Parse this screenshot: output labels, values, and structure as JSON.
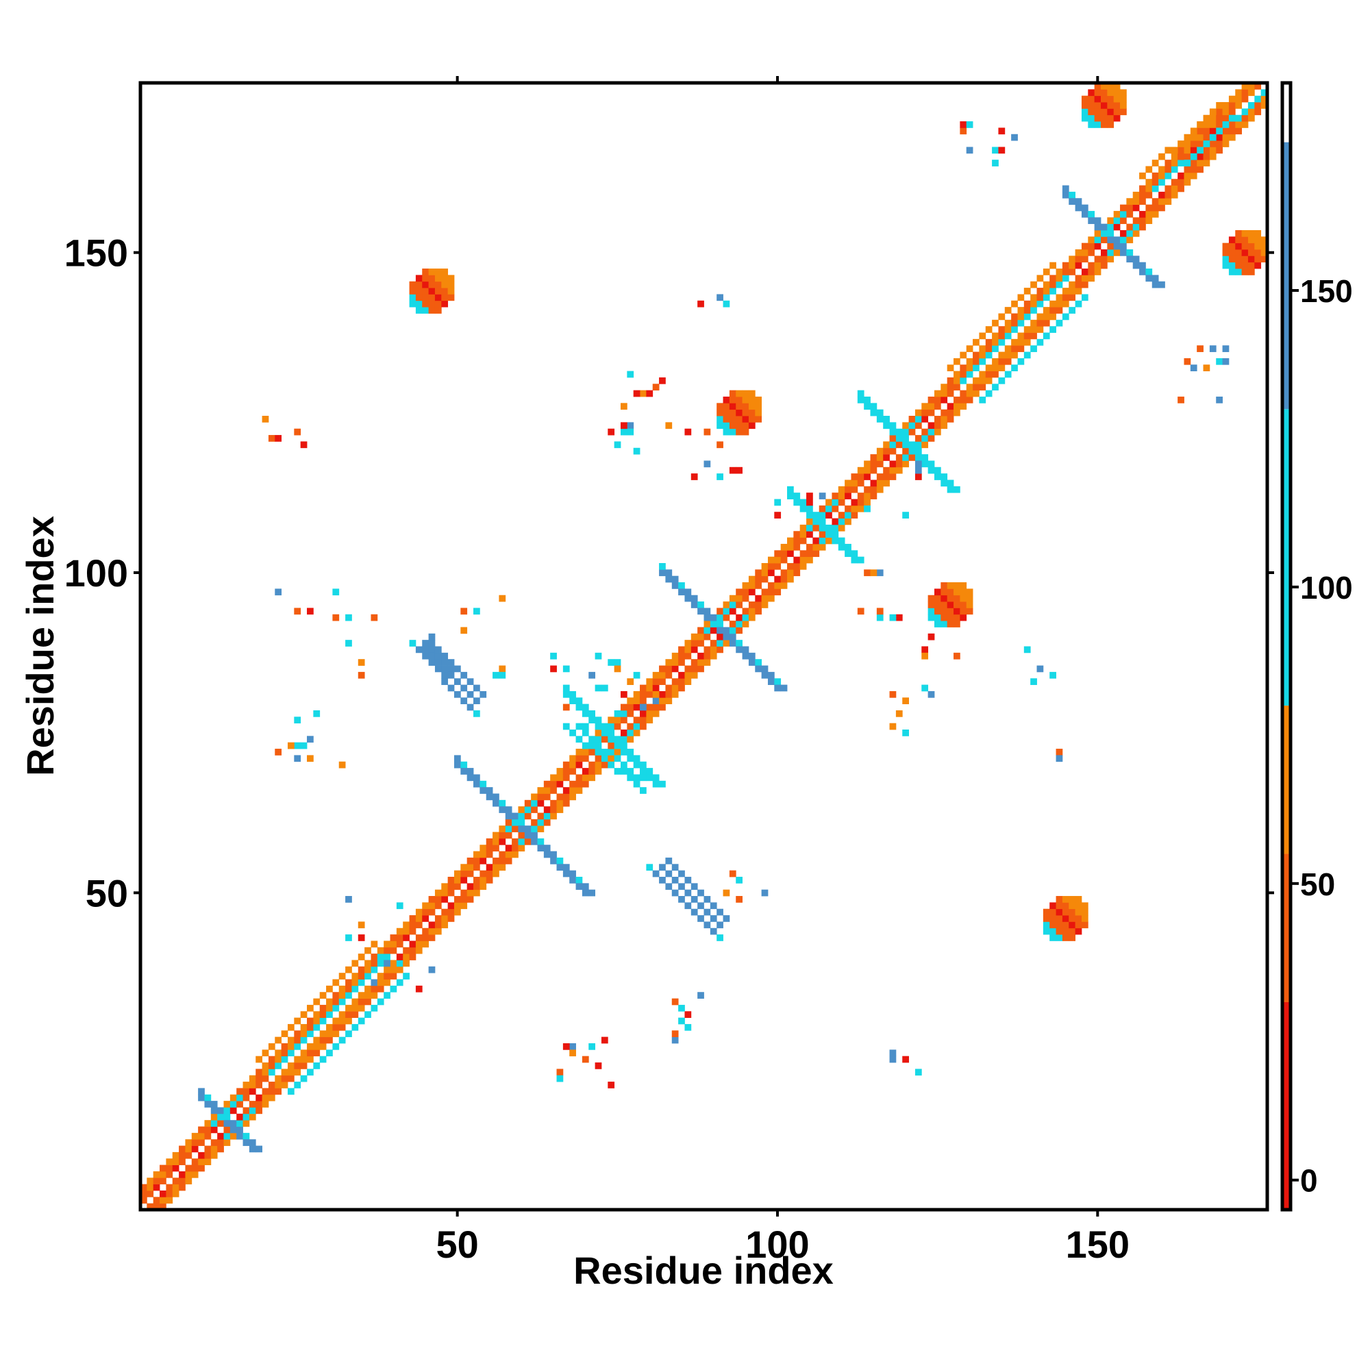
{
  "chart_data": {
    "type": "heatmap",
    "title": "",
    "xlabel": "Residue index",
    "ylabel": "Residue index",
    "xlim": [
      1,
      176
    ],
    "ylim": [
      1,
      176
    ],
    "x_ticks": [
      50,
      100,
      150
    ],
    "y_ticks": [
      50,
      100,
      150
    ],
    "colorbar": {
      "range": [
        -5,
        185
      ],
      "ticks": [
        0,
        50,
        100,
        150
      ],
      "bands": [
        {
          "from": -5,
          "to": 30,
          "color": "#e8160d"
        },
        {
          "from": 30,
          "to": 55,
          "color": "#f25c0f"
        },
        {
          "from": 55,
          "to": 80,
          "color": "#f5880a"
        },
        {
          "from": 80,
          "to": 130,
          "color": "#17d8e6"
        },
        {
          "from": 130,
          "to": 175,
          "color": "#4b8fc8"
        },
        {
          "from": 175,
          "to": 185,
          "color": "#ffffff"
        }
      ]
    },
    "palette": {
      "red": "#e8160d",
      "orange_red": "#f25c0f",
      "orange": "#f5880a",
      "cyan": "#17d8e6",
      "blue": "#4b8fc8"
    },
    "regions": [
      {
        "kind": "diagonal",
        "from": 1,
        "to": 176
      },
      {
        "kind": "cross",
        "x": 14,
        "y": 14,
        "len": 4,
        "color": "blue"
      },
      {
        "kind": "band",
        "x0": 20,
        "y0": 23,
        "x1": 38,
        "y1": 41,
        "width": 3
      },
      {
        "kind": "band",
        "x0": 23,
        "y0": 20,
        "x1": 41,
        "y1": 38,
        "width": 3
      },
      {
        "kind": "cross",
        "x": 60,
        "y": 60,
        "len": 10,
        "color": "blue"
      },
      {
        "kind": "cross",
        "x": 74,
        "y": 74,
        "len": 7,
        "color": "cyan"
      },
      {
        "kind": "cross",
        "x": 91,
        "y": 91,
        "len": 9,
        "color": "blue"
      },
      {
        "kind": "cross",
        "x": 107,
        "y": 107,
        "len": 5,
        "color": "cyan"
      },
      {
        "kind": "cross",
        "x": 120,
        "y": 120,
        "len": 7,
        "color": "cyan"
      },
      {
        "kind": "band",
        "x0": 128,
        "y0": 131,
        "x1": 144,
        "y1": 147,
        "width": 3
      },
      {
        "kind": "band",
        "x0": 131,
        "y0": 128,
        "x1": 147,
        "y1": 144,
        "width": 3
      },
      {
        "kind": "cross",
        "x": 152,
        "y": 152,
        "len": 7,
        "color": "blue"
      },
      {
        "kind": "band",
        "x0": 158,
        "y0": 161,
        "x1": 175,
        "y1": 176,
        "width": 3
      },
      {
        "kind": "segment",
        "x0": 44,
        "y0": 88,
        "x1": 52,
        "y1": 79,
        "color": "blue",
        "width": 4
      },
      {
        "kind": "segment",
        "x0": 81,
        "y0": 53,
        "x1": 90,
        "y1": 44,
        "color": "blue",
        "width": 4
      },
      {
        "kind": "segment",
        "x0": 68,
        "y0": 75,
        "x1": 78,
        "y1": 67,
        "color": "cyan",
        "width": 2
      },
      {
        "kind": "blob",
        "x": 46,
        "y": 144,
        "rx": 3,
        "ry": 3
      },
      {
        "kind": "blob",
        "x": 94,
        "y": 125,
        "rx": 3,
        "ry": 3
      },
      {
        "kind": "blob",
        "x": 127,
        "y": 95,
        "rx": 3,
        "ry": 3
      },
      {
        "kind": "blob",
        "x": 145,
        "y": 46,
        "rx": 3,
        "ry": 3
      },
      {
        "kind": "blob",
        "x": 151,
        "y": 173,
        "rx": 3,
        "ry": 3
      },
      {
        "kind": "blob",
        "x": 173,
        "y": 150,
        "rx": 3,
        "ry": 3
      },
      {
        "kind": "scatter",
        "cx": 30,
        "cy": 90,
        "r": 8,
        "n": 10
      },
      {
        "kind": "scatter",
        "cx": 27,
        "cy": 75,
        "r": 6,
        "n": 10
      },
      {
        "kind": "scatter",
        "cx": 22,
        "cy": 121,
        "r": 4,
        "n": 5
      },
      {
        "kind": "scatter",
        "cx": 37,
        "cy": 44,
        "r": 5,
        "n": 8
      },
      {
        "kind": "scatter",
        "cx": 42,
        "cy": 35,
        "r": 5,
        "n": 6
      },
      {
        "kind": "scatter",
        "cx": 70,
        "cy": 82,
        "r": 6,
        "n": 12
      },
      {
        "kind": "scatter",
        "cx": 76,
        "cy": 80,
        "r": 6,
        "n": 10
      },
      {
        "kind": "scatter",
        "cx": 70,
        "cy": 24,
        "r": 4,
        "n": 10
      },
      {
        "kind": "scatter",
        "cx": 87,
        "cy": 30,
        "r": 4,
        "n": 10
      },
      {
        "kind": "scatter",
        "cx": 78,
        "cy": 127,
        "r": 5,
        "n": 10
      },
      {
        "kind": "scatter",
        "cx": 75,
        "cy": 120,
        "r": 3,
        "n": 5
      },
      {
        "kind": "scatter",
        "cx": 90,
        "cy": 118,
        "r": 5,
        "n": 8
      },
      {
        "kind": "scatter",
        "cx": 89,
        "cy": 145,
        "r": 3,
        "n": 4
      },
      {
        "kind": "scatter",
        "cx": 103,
        "cy": 110,
        "r": 4,
        "n": 6
      },
      {
        "kind": "scatter",
        "cx": 115,
        "cy": 97,
        "r": 5,
        "n": 8
      },
      {
        "kind": "scatter",
        "cx": 118,
        "cy": 112,
        "r": 5,
        "n": 6
      },
      {
        "kind": "scatter",
        "cx": 123,
        "cy": 85,
        "r": 5,
        "n": 8
      },
      {
        "kind": "scatter",
        "cx": 118,
        "cy": 77,
        "r": 3,
        "n": 3
      },
      {
        "kind": "scatter",
        "cx": 142,
        "cy": 86,
        "r": 3,
        "n": 4
      },
      {
        "kind": "scatter",
        "cx": 121,
        "cy": 22,
        "r": 3,
        "n": 4
      },
      {
        "kind": "scatter",
        "cx": 132,
        "cy": 166,
        "r": 5,
        "n": 10
      },
      {
        "kind": "scatter",
        "cx": 166,
        "cy": 132,
        "r": 5,
        "n": 10
      },
      {
        "kind": "scatter",
        "cx": 144,
        "cy": 72,
        "r": 1,
        "n": 2
      },
      {
        "kind": "scatter",
        "cx": 54,
        "cy": 95,
        "r": 4,
        "n": 4
      },
      {
        "kind": "scatter",
        "cx": 95,
        "cy": 52,
        "r": 4,
        "n": 5
      },
      {
        "kind": "scatter",
        "cx": 55,
        "cy": 83,
        "r": 3,
        "n": 3
      }
    ]
  }
}
